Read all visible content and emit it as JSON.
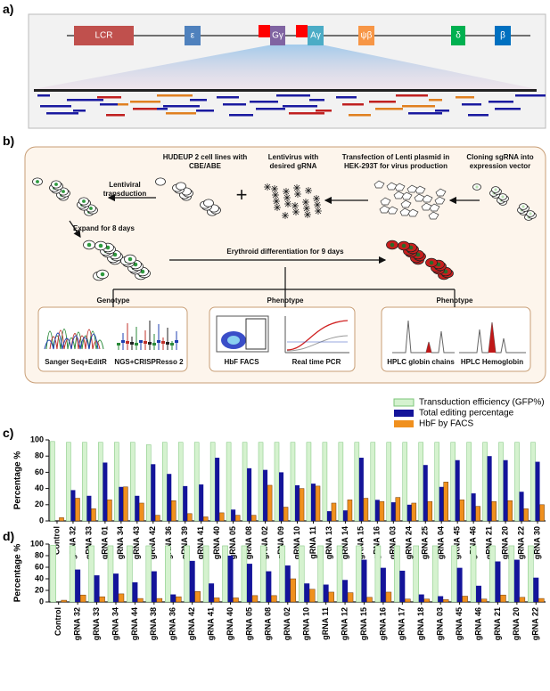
{
  "panel_a": {
    "label": "a)",
    "genes": [
      "LCR",
      "ε",
      "Gγ",
      "Aγ",
      "ψβ",
      "δ",
      "β"
    ]
  },
  "panel_b": {
    "label": "b)",
    "steps": [
      "HUDEUP 2 cell lines with CBE/ABE",
      "Lentivirus with desired gRNA",
      "Transfection of Lenti plasmid in HEK-293T for virus production",
      "Cloning sgRNA into expression vector"
    ],
    "plus": "+",
    "transduction": "Lentiviral transduction",
    "expand": "Expand for 8 days",
    "differentiation": "Erythroid differentiation for 9 days",
    "groups": [
      {
        "title": "Genotype",
        "methods": [
          "Sanger Seq+EditR",
          "NGS+CRISPResso 2"
        ]
      },
      {
        "title": "Phenotype",
        "methods": [
          "HbF FACS",
          "Real time PCR"
        ]
      },
      {
        "title": "Phenotype",
        "methods": [
          "HPLC globin chains",
          "HPLC Hemoglobin"
        ]
      }
    ]
  },
  "panel_c": {
    "label": "c)"
  },
  "panel_d": {
    "label": "d)"
  },
  "chart_data": [
    {
      "type": "bar",
      "y_label": "Percentage %",
      "categories": [
        "Control",
        "gRNA 32",
        "gRNA 33",
        "gRNA 01",
        "gRNA 34",
        "gRNA 43",
        "gRNA 42",
        "gRNA 36",
        "gRNA 39",
        "gRNA 41",
        "gRNA 40",
        "gRNA 05",
        "gRNA 08",
        "gRNA 02",
        "gRNA 09",
        "gRNA 10",
        "gRNA 11",
        "gRNA 13",
        "gRNA 14",
        "gRNA 15",
        "gRNA 16",
        "gRNA 03",
        "gRNA 24",
        "gRNA 25",
        "gRNA 04",
        "gRNA 45",
        "gRNA 46",
        "gRNA 21",
        "gRNA 20",
        "gRNA 22",
        "gRNA 30"
      ],
      "series": [
        {
          "name": "Transduction efficiency (GFP%)",
          "color": "#d5f2cf",
          "values": [
            98,
            97,
            97,
            97,
            97,
            97,
            94,
            97,
            97,
            97,
            97,
            97,
            97,
            97,
            97,
            97,
            97,
            97,
            97,
            97,
            97,
            97,
            97,
            97,
            97,
            97,
            97,
            97,
            97,
            97,
            97
          ]
        },
        {
          "name": "Total editing percentage",
          "color": "#14149a",
          "values": [
            0,
            38,
            31,
            72,
            42,
            31,
            70,
            58,
            43,
            45,
            78,
            14,
            65,
            63,
            60,
            44,
            46,
            12,
            13,
            78,
            26,
            23,
            20,
            69,
            42,
            75,
            34,
            80,
            75,
            36,
            73
          ]
        },
        {
          "name": "HbF by FACS",
          "color": "#f0901e",
          "values": [
            4,
            28,
            15,
            26,
            42,
            22,
            7,
            25,
            9,
            5,
            10,
            7,
            7,
            44,
            17,
            40,
            43,
            22,
            26,
            28,
            24,
            29,
            22,
            24,
            48,
            26,
            18,
            24,
            25,
            15,
            20
          ]
        }
      ],
      "ylim": [
        0,
        100
      ],
      "yticks": [
        0,
        20,
        40,
        60,
        80,
        100
      ],
      "legend": "top-right"
    },
    {
      "type": "bar",
      "y_label": "Percentage %",
      "categories": [
        "Control",
        "gRNA 32",
        "gRNA 33",
        "gRNA 34",
        "gRNA 44",
        "gRNA 38",
        "gRNA 36",
        "gRNA 42",
        "gRNA 41",
        "gRNA 40",
        "gRNA 05",
        "gRNA 08",
        "gRNA 02",
        "gRNA 10",
        "gRNA 11",
        "gRNA 12",
        "gRNA 15",
        "gRNA 16",
        "gRNA 17",
        "gRNA 18",
        "gRNA 03",
        "gRNA 45",
        "gRNA 46",
        "gRNA 21",
        "gRNA 20",
        "gRNA 22"
      ],
      "series": [
        {
          "color": "#d5f2cf",
          "values": [
            98,
            97,
            97,
            97,
            97,
            97,
            97,
            97,
            97,
            97,
            97,
            97,
            97,
            97,
            97,
            97,
            97,
            97,
            97,
            97,
            97,
            97,
            97,
            97,
            97,
            97
          ]
        },
        {
          "color": "#14149a",
          "values": [
            0,
            56,
            46,
            49,
            34,
            53,
            13,
            71,
            32,
            80,
            66,
            53,
            63,
            32,
            30,
            38,
            73,
            59,
            54,
            13,
            10,
            59,
            28,
            70,
            73,
            42
          ]
        },
        {
          "color": "#f0901e",
          "values": [
            3,
            12,
            9,
            14,
            6,
            6,
            9,
            18,
            7,
            7,
            11,
            11,
            40,
            22,
            17,
            16,
            8,
            17,
            5,
            5,
            4,
            10,
            5,
            12,
            8,
            6
          ]
        }
      ],
      "ylim": [
        0,
        100
      ],
      "yticks": [
        0,
        20,
        40,
        60,
        80,
        100
      ]
    }
  ]
}
